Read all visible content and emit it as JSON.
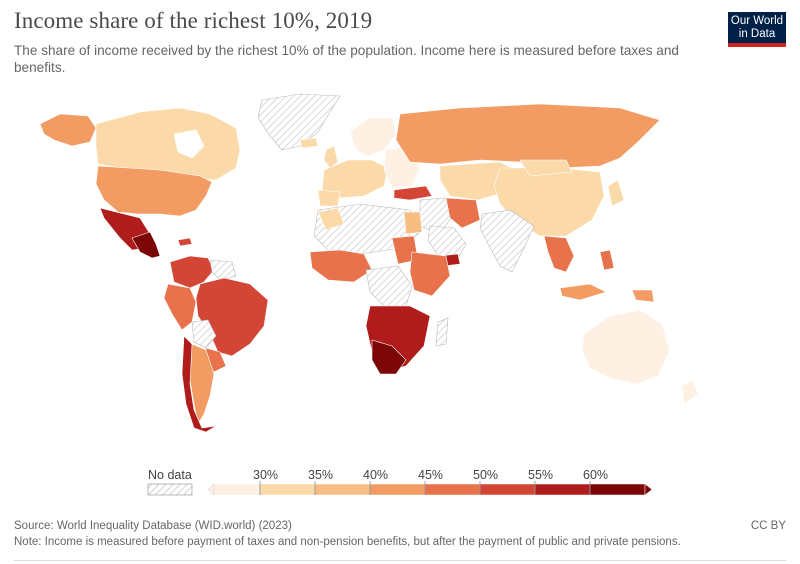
{
  "header": {
    "title": "Income share of the richest 10%, 2019",
    "subtitle": "The share of income received by the richest 10% of the population. Income here is measured before taxes and benefits."
  },
  "logo": {
    "line1": "Our World",
    "line2": "in Data"
  },
  "legend": {
    "no_data_label": "No data",
    "ticks": [
      "30%",
      "35%",
      "40%",
      "45%",
      "50%",
      "55%",
      "60%"
    ],
    "colors": [
      "#fef0e2",
      "#fbd9a8",
      "#f7bd83",
      "#f29c63",
      "#e8724b",
      "#d34535",
      "#b01c1b",
      "#7c0606"
    ]
  },
  "footer": {
    "source": "Source: World Inequality Database (WID.world) (2023)",
    "note": "Note: Income is measured before payment of taxes and non-pension benefits, but after the payment of public and private pensions.",
    "license": "CC BY"
  }
}
